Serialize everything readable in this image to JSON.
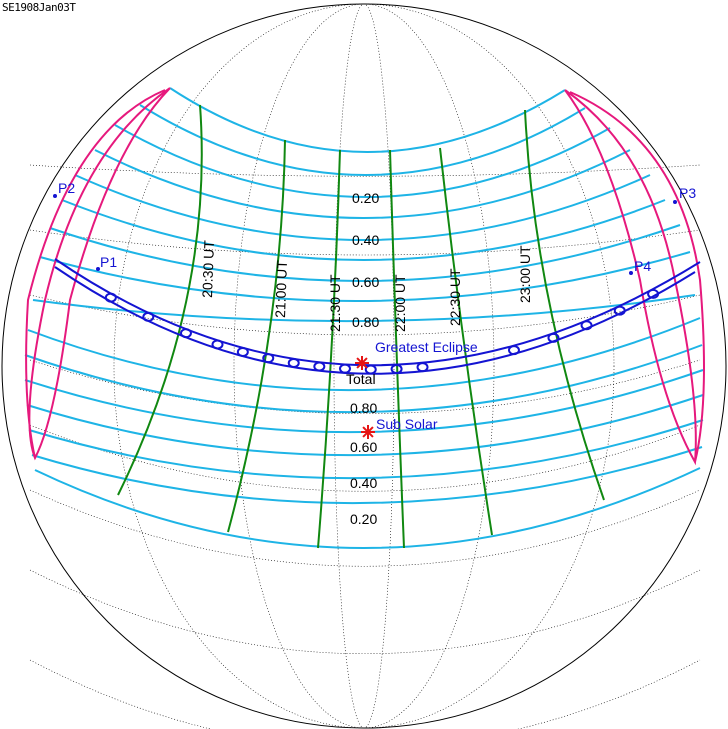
{
  "title": "SE1908Jan03T",
  "colors": {
    "magnitude_lines": "#1eb4e6",
    "time_lines": "#118811",
    "limit_lines": "#e6197d",
    "central_path": "#1414d2",
    "markers": "#e61414",
    "labels_blue": "#1414d2"
  },
  "magnitude_labels_north": [
    "0.20",
    "0.40",
    "0.60",
    "0.80"
  ],
  "magnitude_labels_south": [
    "0.80",
    "0.60",
    "0.40",
    "0.20"
  ],
  "time_labels": [
    "20:30 UT",
    "21:00 UT",
    "21:30 UT",
    "22:00 UT",
    "22:30 UT",
    "23:00 UT"
  ],
  "contact_points": [
    "P1",
    "P2",
    "P3",
    "P4"
  ],
  "greatest_eclipse_label": "Greatest Eclipse",
  "eclipse_type_label": "Total",
  "sub_solar_label": "Sub Solar"
}
